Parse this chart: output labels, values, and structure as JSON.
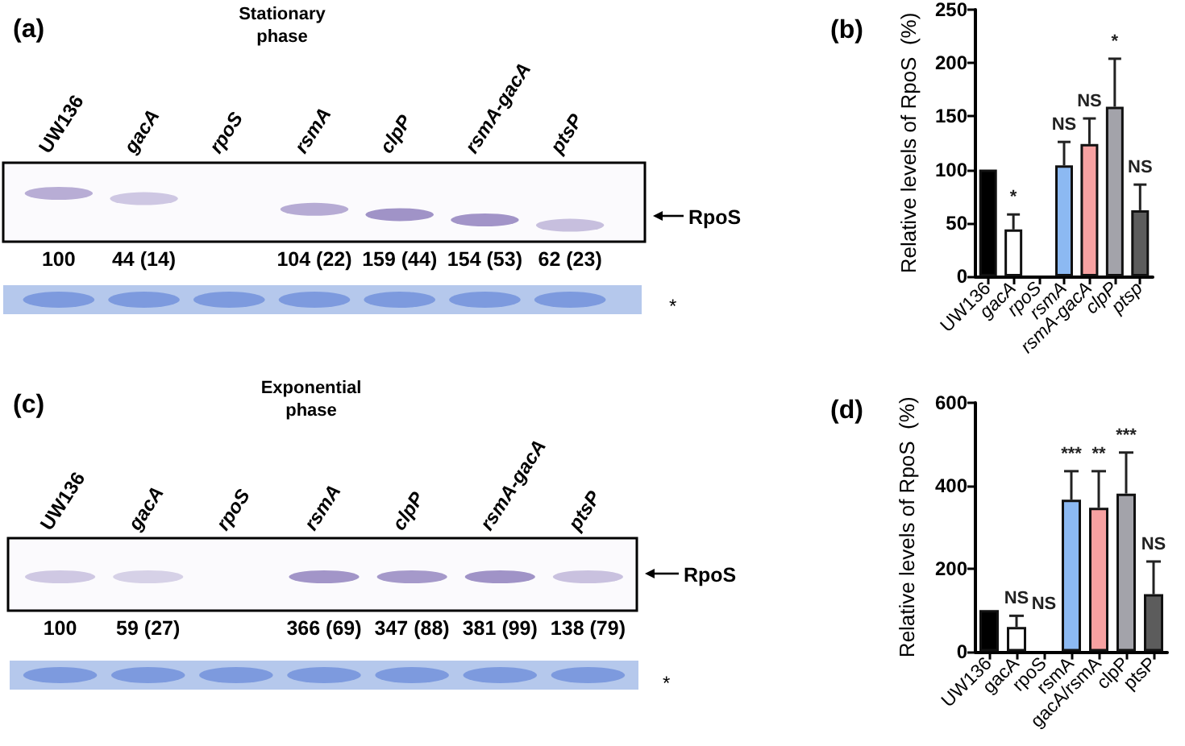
{
  "chart_data": [
    {
      "type": "other",
      "title": "Stationary phase",
      "categories": [
        "UW136",
        "gacA",
        "rpoS",
        "rsmA",
        "clpP",
        "rsmA-gacA",
        "ptsP"
      ],
      "values": [
        100,
        44,
        null,
        104,
        159,
        154,
        62
      ],
      "value_labels": [
        "100",
        "44 (14)",
        null,
        "104 (22)",
        "159 (44)",
        "154 (53)",
        "62 (23)"
      ],
      "annotations": [
        "(a)",
        "RpoS",
        "*"
      ]
    },
    {
      "type": "bar",
      "categories": [
        "UW136",
        "gacA",
        "rpoS",
        "rsmA",
        "rsmA-gacA",
        "clpP",
        "ptsp"
      ],
      "values": [
        100,
        44,
        null,
        104,
        124,
        159,
        62
      ],
      "colors": [
        "#000000",
        "#ffffff",
        null,
        "#8cb9f2",
        "#f7a1a1",
        "#a3a3aa",
        "#5c5c5c"
      ],
      "errors": [
        null,
        [
          44,
          58
        ],
        null,
        [
          104,
          126
        ],
        [
          124,
          148
        ],
        [
          159,
          204
        ],
        [
          62,
          86
        ]
      ],
      "ylabel": "Relative levels of RpoS  (%)",
      "ylim": [
        0,
        250
      ],
      "yticks": [
        0,
        50,
        100,
        150,
        200,
        250
      ],
      "annotations": [
        "(b)",
        {
          "text": "*",
          "x": "gacA",
          "y": 58
        },
        {
          "text": "NS",
          "x": "rsmA",
          "y": 126
        },
        {
          "text": "NS",
          "x": "rsmA-gacA",
          "y": 148
        },
        {
          "text": "*",
          "x": "clpP",
          "y": 204
        },
        {
          "text": "NS",
          "x": "ptsp",
          "y": 86
        }
      ]
    },
    {
      "type": "other",
      "title": "Exponential phase",
      "categories": [
        "UW136",
        "gacA",
        "rpoS",
        "rsmA",
        "clpP",
        "rsmA-gacA",
        "ptsP"
      ],
      "values": [
        100,
        59,
        null,
        366,
        347,
        381,
        138
      ],
      "value_labels": [
        "100",
        "59 (27)",
        null,
        "366 (69)",
        "347 (88)",
        "381 (99)",
        "138 (79)"
      ],
      "annotations": [
        "(c)",
        "RpoS",
        "*"
      ]
    },
    {
      "type": "bar",
      "categories": [
        "UW136",
        "gacA",
        "rpoS",
        "rsmA",
        "gacA/rsmA",
        "clpP",
        "ptsP"
      ],
      "values": [
        100,
        59,
        null,
        366,
        347,
        381,
        138
      ],
      "colors": [
        "#000000",
        "#ffffff",
        null,
        "#8cb9f2",
        "#f7a1a1",
        "#a3a3aa",
        "#5c5c5c"
      ],
      "errors": [
        null,
        [
          59,
          86
        ],
        null,
        [
          366,
          435
        ],
        [
          347,
          435
        ],
        [
          381,
          480
        ],
        [
          138,
          217
        ]
      ],
      "ylabel": "Relative levels of RpoS  (%)",
      "ylim": [
        0,
        600
      ],
      "yticks": [
        0,
        200,
        400,
        600
      ],
      "annotations": [
        "(d)",
        "NS",
        {
          "text": "NS",
          "x": "gacA",
          "y": 86
        },
        {
          "text": "***",
          "x": "rsmA",
          "y": 435
        },
        {
          "text": "**",
          "x": "gacA/rsmA",
          "y": 435
        },
        {
          "text": "***",
          "x": "clpP",
          "y": 480
        },
        {
          "text": "NS",
          "x": "ptsP",
          "y": 217
        }
      ]
    }
  ]
}
